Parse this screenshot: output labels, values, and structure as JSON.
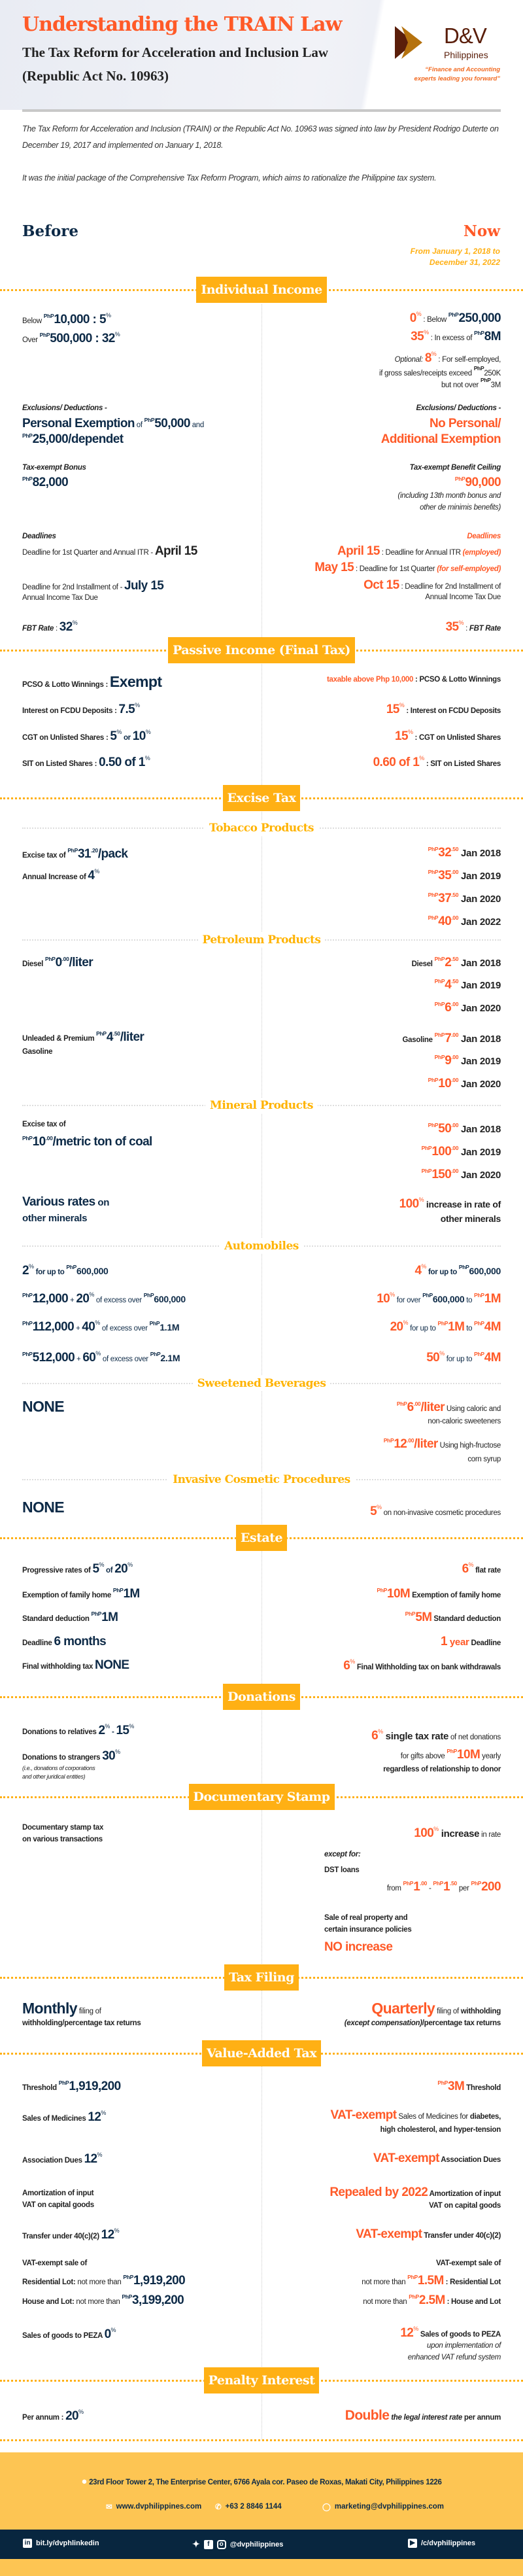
{
  "header": {
    "title": "Understanding the TRAIN Law",
    "subtitle": "The Tax Reform for Acceleration and Inclusion Law",
    "act": "(Republic Act No. 10963)"
  },
  "logo": {
    "brand": "D&V",
    "sub": "Philippines",
    "tagline1": "“Finance and Accounting",
    "tagline2": "experts leading you forward”",
    "colors": {
      "brown": "#5a1e0a",
      "gold": "#b5720e"
    }
  },
  "intro": [
    "The Tax Reform for Acceleration and Inclusion (TRAIN) or the Republic Act No. 10963 was signed into law by President Rodrigo Duterte on December 19, 2017 and implemented on January 1, 2018.",
    "It was the initial package of the Comprehensive Tax Reform Program, which aims to rationalize the Philippine tax system."
  ],
  "before": "Before",
  "now": "Now",
  "period1": "From January 1, 2018 to",
  "period2": "December 31, 2022",
  "colors": {
    "before": "#0d2a47",
    "now": "#ff5a28",
    "banner": "#ffb014",
    "footer": "#fdc553",
    "footer_bar": "#08263f"
  },
  "ind": {
    "title": "Individual Income",
    "l": [
      [
        "Below ",
        "PhP",
        "10,000 : 5",
        "%"
      ],
      [
        "Over ",
        "PhP",
        "500,000 : 32",
        "%"
      ],
      [
        "Exclusions/ Deductions -"
      ],
      [
        "Personal Exemption",
        " of ",
        "PhP",
        "50,000",
        " and"
      ],
      [
        "PhP",
        "25,000/dependet"
      ],
      [
        "Tax-exempt Bonus"
      ],
      [
        "PhP",
        "82,000"
      ],
      [
        "Deadlines"
      ],
      [
        "Deadline for 1st Quarter and Annual ITR - ",
        "April 15"
      ],
      [
        "Deadline for 2nd Installment of - ",
        "July 15"
      ],
      [
        "Annual Income Tax Due"
      ],
      [
        "FBT Rate",
        " : ",
        "32",
        "%"
      ]
    ],
    "r": [
      [
        "0",
        "%",
        " : Below ",
        "PhP",
        "250,000"
      ],
      [
        "35",
        "%",
        " : In excess of ",
        "PhP",
        "8M"
      ],
      [
        "Optional: ",
        "8",
        "%",
        " : For self-employed,"
      ],
      [
        "if gross sales/receipts exceed ",
        "PhP",
        "250K"
      ],
      [
        "but not over ",
        "PhP",
        "3M"
      ],
      [
        "Exclusions/ Deductions -"
      ],
      [
        "No Personal/"
      ],
      [
        "Additional Exemption"
      ],
      [
        "Tax-exempt Benefit Ceiling"
      ],
      [
        "PhP",
        "90,000"
      ],
      [
        "(including 13th month bonus and"
      ],
      [
        "other de minimis benefits)"
      ],
      [
        "Deadlines"
      ],
      [
        "April 15",
        " : Deadline for Annual ITR ",
        "(employed)"
      ],
      [
        "May 15",
        " : Deadline for 1st Quarter ",
        "(for self-employed)"
      ],
      [
        "Oct 15",
        " : Deadline for 2nd Installment of"
      ],
      [
        "Annual Income Tax Due"
      ],
      [
        "35",
        "%",
        " : ",
        "FBT Rate"
      ]
    ]
  },
  "pas": {
    "title": "Passive Income (Final Tax)",
    "l": [
      [
        "PCSO & Lotto Winnings",
        " : ",
        "Exempt"
      ],
      [
        "Interest on FCDU Deposits",
        " : ",
        "7.5",
        "%"
      ],
      [
        "CGT on Unlisted Shares",
        " :  ",
        "5",
        "%",
        " or ",
        "10",
        "%"
      ],
      [
        "SIT on Listed Shares",
        " :  ",
        "0.50 of 1",
        "%"
      ]
    ],
    "r": [
      [
        "taxable above Php 10,000",
        " : PCSO & Lotto Winnings"
      ],
      [
        "15",
        "%",
        " : Interest on FCDU Deposits"
      ],
      [
        "15",
        "%",
        " : CGT on Unlisted Shares"
      ],
      [
        "0.60 of 1",
        "%",
        " : SIT on Listed Shares"
      ]
    ]
  },
  "exc": {
    "title": "Excise Tax",
    "tobacco": {
      "title": "Tobacco Products",
      "l": [
        [
          "Excise tax of ",
          "PhP",
          "31",
          ".20",
          "/pack"
        ],
        [
          "Annual Increase of ",
          "4",
          "%"
        ]
      ],
      "r": [
        [
          "PhP",
          "32",
          ".50",
          " Jan 2018"
        ],
        [
          "PhP",
          "35",
          ".00",
          " Jan 2019"
        ],
        [
          "PhP",
          "37",
          ".50",
          " Jan 2020"
        ],
        [
          "PhP",
          "40",
          ".00",
          " Jan 2022"
        ]
      ]
    },
    "petroleum": {
      "title": "Petroleum Products",
      "l": [
        [
          "Diesel ",
          "PhP",
          "0",
          ".00",
          "/liter"
        ],
        [
          "Unleaded & Premium ",
          "PhP",
          "4",
          ".50",
          "/liter"
        ],
        [
          "Gasoline"
        ]
      ],
      "r": [
        [
          "Diesel ",
          "PhP",
          "2",
          ".50",
          " Jan 2018"
        ],
        [
          "PhP",
          "4",
          ".50",
          " Jan 2019"
        ],
        [
          "PhP",
          "6",
          ".00",
          " Jan 2020"
        ],
        [
          "Gasoline ",
          "PhP",
          "7",
          ".00",
          " Jan 2018"
        ],
        [
          "PhP",
          "9",
          ".00",
          " Jan 2019"
        ],
        [
          "PhP",
          "10",
          ".00",
          " Jan 2020"
        ]
      ]
    },
    "mineral": {
      "title": "Mineral Products",
      "l": [
        [
          "Excise tax of"
        ],
        [
          "PhP",
          "10",
          ".00",
          "/metric ton of coal"
        ],
        [
          "Various rates",
          " on"
        ],
        [
          "other minerals"
        ]
      ],
      "r": [
        [
          "PhP",
          "50",
          ".00",
          " Jan 2018"
        ],
        [
          "PhP",
          "100",
          ".00",
          " Jan 2019"
        ],
        [
          "PhP",
          "150",
          ".00",
          " Jan 2020"
        ],
        [
          "100",
          "%",
          " increase in rate of"
        ],
        [
          "other minerals"
        ]
      ]
    },
    "auto": {
      "title": "Automobiles",
      "l": [
        [
          "2",
          "%",
          " for up to ",
          "PhP",
          "600,000"
        ],
        [
          "PhP",
          "12,000",
          " + ",
          "20",
          "%",
          " of excess over ",
          "PhP",
          "600,000"
        ],
        [
          "PhP",
          "112,000",
          " + ",
          "40",
          "%",
          " of excess over ",
          "PhP",
          "1.1M"
        ],
        [
          "PhP",
          "512,000",
          " + ",
          "60",
          "%",
          " of excess over ",
          "PhP",
          "2.1M"
        ]
      ],
      "r": [
        [
          "4",
          "%",
          " for up to ",
          "PhP",
          "600,000"
        ],
        [
          "10",
          "%",
          " for over ",
          "PhP",
          "600,000",
          " to ",
          "PhP",
          "1M"
        ],
        [
          "20",
          "%",
          " for up to ",
          "PhP",
          "1M",
          " to ",
          "PhP",
          "4M"
        ],
        [
          "50",
          "%",
          " for up to ",
          "PhP",
          "4M"
        ]
      ]
    },
    "sweet": {
      "title": "Sweetened Beverages",
      "l": [
        [
          "NONE"
        ]
      ],
      "r": [
        [
          "PhP",
          "6",
          ".00",
          "/liter",
          " Using caloric and"
        ],
        [
          "non-caloric sweeteners"
        ],
        [
          "PhP",
          "12",
          ".00",
          "/liter",
          " Using high-fructose"
        ],
        [
          "corn syrup"
        ]
      ]
    },
    "cosm": {
      "title": "Invasive Cosmetic Procedures",
      "l": [
        [
          "NONE"
        ]
      ],
      "r": [
        [
          "5",
          "%",
          " on non-invasive cosmetic procedures"
        ]
      ]
    }
  },
  "est": {
    "title": "Estate",
    "l": [
      [
        "Progressive rates of ",
        "5",
        "%",
        " of ",
        "20",
        "%"
      ],
      [
        "Exemption of family home ",
        "PhP",
        "1M"
      ],
      [
        "Standard deduction ",
        "PhP",
        "1M"
      ],
      [
        "Deadline ",
        "6 months"
      ],
      [
        "Final withholding tax ",
        "NONE"
      ]
    ],
    "r": [
      [
        "6",
        "%",
        " flat rate"
      ],
      [
        "PhP",
        "10M",
        " Exemption of family home"
      ],
      [
        "PhP",
        "5M",
        " Standard deduction"
      ],
      [
        "1",
        " year",
        " Deadline"
      ],
      [
        "6",
        "%",
        " Final Withholding tax on bank withdrawals"
      ]
    ]
  },
  "don": {
    "title": "Donations",
    "l": [
      [
        "Donations to relatives ",
        "2",
        "%",
        " - ",
        "15",
        "%"
      ],
      [
        "Donations to strangers ",
        "30",
        "%"
      ],
      [
        "(i.e., donations of corporations"
      ],
      [
        "and other juridical entities)"
      ]
    ],
    "r": [
      [
        "6",
        "%",
        " single tax rate",
        " of net donations"
      ],
      [
        "for gifts above ",
        "PhP",
        "10M",
        " yearly"
      ],
      [
        "regardless of relationship to donor"
      ]
    ]
  },
  "dst": {
    "title": "Documentary Stamp",
    "l": [
      [
        "Documentary stamp tax"
      ],
      [
        "on various transactions"
      ]
    ],
    "r": [
      [
        "100",
        "%",
        " increase",
        " in rate"
      ],
      [
        "except for:"
      ],
      [
        "DST loans"
      ],
      [
        "from ",
        "PhP",
        "1",
        ".00",
        " - ",
        "PhP",
        "1",
        ".50",
        " per ",
        "PhP",
        "200"
      ],
      [
        "Sale of real property and"
      ],
      [
        "certain insurance policies"
      ],
      [
        "NO increase"
      ]
    ]
  },
  "fil": {
    "title": "Tax Filing",
    "l": [
      [
        "Monthly",
        " filing of"
      ],
      [
        "withholding/percentage tax returns"
      ]
    ],
    "r": [
      [
        "Quarterly",
        " filing of ",
        "withholding"
      ],
      [
        "(except compensation)",
        "/percentage tax returns"
      ]
    ]
  },
  "vat": {
    "title": "Value-Added Tax",
    "l": [
      [
        "Threshold ",
        "PhP",
        "1,919,200"
      ],
      [
        "Sales of Medicines ",
        "12",
        "%"
      ],
      [
        "Association Dues ",
        "12",
        "%"
      ],
      [
        "Amortization of input"
      ],
      [
        "VAT on capital goods"
      ],
      [
        "Transfer under 40(c)(2) ",
        "12",
        "%"
      ],
      [
        "VAT-exempt sale of"
      ],
      [
        "Residential Lot:",
        " not more than ",
        "PhP",
        "1,919,200"
      ],
      [
        "House and Lot:",
        " not more than ",
        "PhP",
        "3,199,200"
      ],
      [
        "Sales of goods to PEZA ",
        "0",
        "%"
      ]
    ],
    "r": [
      [
        "PhP",
        "3M",
        " Threshold"
      ],
      [
        "VAT-exempt",
        " Sales of Medicines for ",
        "diabetes,"
      ],
      [
        "high cholesterol, and hyper-tension"
      ],
      [
        "VAT-exempt",
        " Association Dues"
      ],
      [
        "Repealed by 2022",
        " Amortization of input"
      ],
      [
        "VAT on capital goods"
      ],
      [
        "VAT-exempt",
        " Transfer under 40(c)(2)"
      ],
      [
        "VAT-exempt sale of"
      ],
      [
        "not more than ",
        "PhP",
        "1.5M",
        " : Residential Lot"
      ],
      [
        "not more than ",
        "PhP",
        "2.5M",
        " : House and Lot"
      ],
      [
        "12",
        "%",
        " Sales of goods to PEZA"
      ],
      [
        "upon implementation of"
      ],
      [
        "enhanced VAT refund system"
      ]
    ]
  },
  "pen": {
    "title": "Penalty Interest",
    "l": [
      [
        "Per annum : ",
        "20",
        "%"
      ]
    ],
    "r": [
      [
        "Double",
        " the legal interest rate",
        " per annum"
      ]
    ]
  },
  "footer": {
    "address": "23rd Floor Tower 2, The Enterprise Center, 6766 Ayala cor. Paseo de Roxas, Makati City, Philippines 1226",
    "website": "www.dvphilippines.com",
    "phone": "+63 2 8846 1144",
    "email": "marketing@dvphilippines.com",
    "linkedin": "bit.ly/dvphlinkedin",
    "social": "@dvphilippines",
    "youtube": "/c/dvphilippines"
  }
}
